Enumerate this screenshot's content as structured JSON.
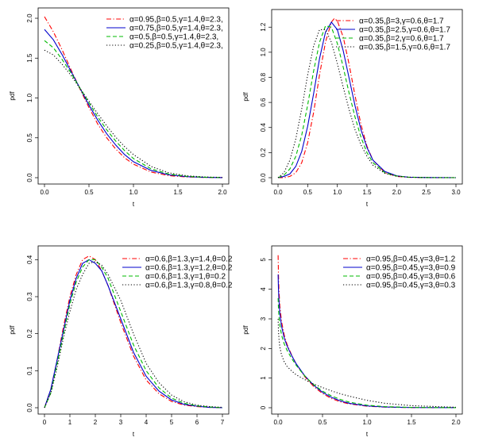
{
  "chart_data": [
    {
      "type": "line",
      "xlabel": "t",
      "ylabel": "pdf",
      "xlim": [
        0,
        2
      ],
      "ylim": [
        0,
        2.05
      ],
      "xticks": [
        "0.0",
        "0.5",
        "1.0",
        "1.5",
        "2.0"
      ],
      "yticks": [
        "0.0",
        "0.5",
        "1.0",
        "1.5",
        "2.0"
      ],
      "xtick_values": [
        0,
        0.5,
        1,
        1.5,
        2
      ],
      "ytick_values": [
        0,
        0.5,
        1,
        1.5,
        2
      ],
      "legend": "top-right",
      "grid": false,
      "series": [
        {
          "name": "α=0.95,β=0.5,γ=1.4,θ=2.3,",
          "color": "#ff0000",
          "dash": "dash-dot",
          "x": [
            0,
            0.1,
            0.2,
            0.3,
            0.4,
            0.5,
            0.6,
            0.7,
            0.8,
            0.9,
            1.0,
            1.2,
            1.4,
            1.6,
            1.8,
            2.0
          ],
          "y": [
            2.02,
            1.83,
            1.6,
            1.35,
            1.11,
            0.88,
            0.67,
            0.5,
            0.36,
            0.25,
            0.17,
            0.07,
            0.025,
            0.009,
            0.003,
            0.001
          ]
        },
        {
          "name": "α=0.75,β=0.5,γ=1.4,θ=2.3,",
          "color": "#0000cc",
          "dash": "solid",
          "x": [
            0,
            0.1,
            0.2,
            0.3,
            0.4,
            0.5,
            0.6,
            0.7,
            0.8,
            0.9,
            1.0,
            1.2,
            1.4,
            1.6,
            1.8,
            2.0
          ],
          "y": [
            1.86,
            1.73,
            1.54,
            1.33,
            1.12,
            0.91,
            0.72,
            0.55,
            0.41,
            0.29,
            0.2,
            0.09,
            0.035,
            0.013,
            0.004,
            0.001
          ]
        },
        {
          "name": "α=0.5,β=0.5,γ=1.4,θ=2.3,",
          "color": "#00bb00",
          "dash": "dash",
          "x": [
            0,
            0.1,
            0.2,
            0.3,
            0.4,
            0.5,
            0.6,
            0.7,
            0.8,
            0.9,
            1.0,
            1.2,
            1.4,
            1.6,
            1.8,
            2.0
          ],
          "y": [
            1.72,
            1.63,
            1.48,
            1.31,
            1.12,
            0.94,
            0.76,
            0.6,
            0.46,
            0.34,
            0.24,
            0.11,
            0.045,
            0.017,
            0.006,
            0.002
          ]
        },
        {
          "name": "α=0.25,β=0.5,γ=1.4,θ=2.3,",
          "color": "#000000",
          "dash": "dot",
          "x": [
            0,
            0.1,
            0.2,
            0.3,
            0.4,
            0.5,
            0.6,
            0.7,
            0.8,
            0.9,
            1.0,
            1.2,
            1.4,
            1.6,
            1.8,
            2.0
          ],
          "y": [
            1.6,
            1.54,
            1.42,
            1.28,
            1.12,
            0.96,
            0.8,
            0.65,
            0.51,
            0.39,
            0.29,
            0.14,
            0.06,
            0.024,
            0.009,
            0.003
          ]
        }
      ]
    },
    {
      "type": "line",
      "xlabel": "t",
      "ylabel": "pdf",
      "xlim": [
        0,
        3
      ],
      "ylim": [
        0,
        1.29
      ],
      "xticks": [
        "0.0",
        "0.5",
        "1.0",
        "1.5",
        "2.0",
        "2.5",
        "3.0"
      ],
      "yticks": [
        "0.0",
        "0.2",
        "0.4",
        "0.6",
        "0.8",
        "1.0",
        "1.2"
      ],
      "xtick_values": [
        0,
        0.5,
        1,
        1.5,
        2,
        2.5,
        3
      ],
      "ytick_values": [
        0,
        0.2,
        0.4,
        0.6,
        0.8,
        1.0,
        1.2
      ],
      "legend": "top-right",
      "grid": false,
      "series": [
        {
          "name": "α=0.35,β=3,γ=0.6,θ=1.7",
          "color": "#ff0000",
          "dash": "dash-dot",
          "x": [
            0,
            0.1,
            0.2,
            0.3,
            0.4,
            0.5,
            0.6,
            0.7,
            0.8,
            0.9,
            0.95,
            1.0,
            1.1,
            1.2,
            1.3,
            1.4,
            1.5,
            1.6,
            1.8,
            2.0,
            2.2,
            2.5,
            3.0
          ],
          "y": [
            0,
            0,
            0.01,
            0.04,
            0.12,
            0.28,
            0.52,
            0.82,
            1.08,
            1.24,
            1.27,
            1.25,
            1.12,
            0.9,
            0.65,
            0.42,
            0.25,
            0.14,
            0.04,
            0.01,
            0.003,
            0,
            0
          ]
        },
        {
          "name": "α=0.35,β=2.5,γ=0.6,θ=1.7",
          "color": "#0000cc",
          "dash": "solid",
          "x": [
            0,
            0.1,
            0.2,
            0.3,
            0.4,
            0.5,
            0.6,
            0.7,
            0.8,
            0.9,
            1.0,
            1.1,
            1.2,
            1.3,
            1.4,
            1.5,
            1.6,
            1.8,
            2.0,
            2.2,
            2.5,
            3.0
          ],
          "y": [
            0,
            0.01,
            0.03,
            0.09,
            0.21,
            0.41,
            0.67,
            0.95,
            1.16,
            1.24,
            1.18,
            1.01,
            0.79,
            0.57,
            0.38,
            0.24,
            0.14,
            0.05,
            0.015,
            0.004,
            0.001,
            0
          ]
        },
        {
          "name": "α=0.35,β=2,γ=0.6,θ=1.7",
          "color": "#00bb00",
          "dash": "dash",
          "x": [
            0,
            0.1,
            0.2,
            0.3,
            0.4,
            0.5,
            0.6,
            0.7,
            0.8,
            0.9,
            1.0,
            1.1,
            1.2,
            1.3,
            1.4,
            1.5,
            1.6,
            1.8,
            2.0,
            2.2,
            2.5,
            3.0
          ],
          "y": [
            0,
            0.02,
            0.07,
            0.17,
            0.34,
            0.58,
            0.85,
            1.08,
            1.21,
            1.2,
            1.07,
            0.88,
            0.67,
            0.48,
            0.32,
            0.2,
            0.12,
            0.04,
            0.013,
            0.004,
            0.001,
            0
          ]
        },
        {
          "name": "α=0.35,β=1.5,γ=0.6,θ=1.7",
          "color": "#000000",
          "dash": "dot",
          "x": [
            0,
            0.1,
            0.2,
            0.3,
            0.4,
            0.5,
            0.6,
            0.7,
            0.8,
            0.9,
            1.0,
            1.1,
            1.2,
            1.3,
            1.4,
            1.5,
            1.6,
            1.8,
            2.0,
            2.2,
            2.5,
            3.0
          ],
          "y": [
            0,
            0.04,
            0.14,
            0.31,
            0.55,
            0.82,
            1.05,
            1.18,
            1.18,
            1.08,
            0.91,
            0.72,
            0.54,
            0.38,
            0.26,
            0.17,
            0.1,
            0.035,
            0.012,
            0.004,
            0.001,
            0
          ]
        }
      ]
    },
    {
      "type": "line",
      "xlabel": "t",
      "ylabel": "pdf",
      "xlim": [
        0,
        7
      ],
      "ylim": [
        0,
        0.42
      ],
      "xticks": [
        "0",
        "1",
        "2",
        "3",
        "4",
        "5",
        "6",
        "7"
      ],
      "yticks": [
        "0.0",
        "0.1",
        "0.2",
        "0.3",
        "0.4"
      ],
      "xtick_values": [
        0,
        1,
        2,
        3,
        4,
        5,
        6,
        7
      ],
      "ytick_values": [
        0,
        0.1,
        0.2,
        0.3,
        0.4
      ],
      "legend": "top-right",
      "grid": false,
      "series": [
        {
          "name": "α=0.6,β=1.3,γ=1.4,θ=0.2",
          "color": "#ff0000",
          "dash": "dash-dot",
          "x": [
            0,
            0.25,
            0.5,
            0.75,
            1.0,
            1.25,
            1.5,
            1.75,
            2.0,
            2.25,
            2.5,
            3.0,
            3.5,
            4.0,
            4.5,
            5.0,
            5.5,
            6.0,
            6.5,
            7.0
          ],
          "y": [
            0,
            0.05,
            0.13,
            0.22,
            0.3,
            0.36,
            0.4,
            0.41,
            0.4,
            0.37,
            0.33,
            0.23,
            0.14,
            0.075,
            0.038,
            0.017,
            0.007,
            0.003,
            0.001,
            0
          ]
        },
        {
          "name": "α=0.6,β=1.3,γ=1.2,θ=0.2",
          "color": "#0000cc",
          "dash": "solid",
          "x": [
            0,
            0.25,
            0.5,
            0.75,
            1.0,
            1.25,
            1.5,
            1.75,
            2.0,
            2.25,
            2.5,
            3.0,
            3.5,
            4.0,
            4.5,
            5.0,
            5.5,
            6.0,
            6.5,
            7.0
          ],
          "y": [
            0,
            0.05,
            0.13,
            0.21,
            0.29,
            0.35,
            0.39,
            0.4,
            0.39,
            0.37,
            0.33,
            0.24,
            0.15,
            0.085,
            0.045,
            0.021,
            0.009,
            0.004,
            0.001,
            0
          ]
        },
        {
          "name": "α=0.6,β=1.3,γ=1,θ=0.2",
          "color": "#00bb00",
          "dash": "dash",
          "x": [
            0,
            0.25,
            0.5,
            0.75,
            1.0,
            1.25,
            1.5,
            1.75,
            2.0,
            2.25,
            2.5,
            3.0,
            3.5,
            4.0,
            4.5,
            5.0,
            5.5,
            6.0,
            6.5,
            7.0
          ],
          "y": [
            0,
            0.04,
            0.12,
            0.2,
            0.28,
            0.34,
            0.38,
            0.4,
            0.4,
            0.38,
            0.35,
            0.26,
            0.17,
            0.1,
            0.054,
            0.026,
            0.012,
            0.005,
            0.002,
            0
          ]
        },
        {
          "name": "α=0.6,β=1.3,γ=0.8,θ=0.2",
          "color": "#000000",
          "dash": "dot",
          "x": [
            0,
            0.25,
            0.5,
            0.75,
            1.0,
            1.25,
            1.5,
            1.75,
            2.0,
            2.25,
            2.5,
            3.0,
            3.5,
            4.0,
            4.5,
            5.0,
            5.5,
            6.0,
            6.5,
            7.0
          ],
          "y": [
            0,
            0.04,
            0.11,
            0.19,
            0.26,
            0.32,
            0.36,
            0.39,
            0.395,
            0.385,
            0.36,
            0.29,
            0.2,
            0.12,
            0.068,
            0.034,
            0.016,
            0.007,
            0.003,
            0.001
          ]
        }
      ]
    },
    {
      "type": "line",
      "xlabel": "t",
      "ylabel": "pdf",
      "xlim": [
        0,
        2
      ],
      "ylim": [
        0,
        5.25
      ],
      "xticks": [
        "0.0",
        "0.5",
        "1.0",
        "1.5",
        "2.0"
      ],
      "yticks": [
        "0",
        "1",
        "2",
        "3",
        "4",
        "5"
      ],
      "xtick_values": [
        0,
        0.5,
        1,
        1.5,
        2
      ],
      "ytick_values": [
        0,
        1,
        2,
        3,
        4,
        5
      ],
      "legend": "top-right",
      "grid": false,
      "series": [
        {
          "name": "α=0.95,β=0.45,γ=3,θ=1.2",
          "color": "#ff0000",
          "dash": "dash-dot",
          "x": [
            0.001,
            0.005,
            0.01,
            0.02,
            0.04,
            0.07,
            0.1,
            0.15,
            0.2,
            0.3,
            0.4,
            0.5,
            0.6,
            0.7,
            0.8,
            1.0,
            1.2,
            1.5,
            2.0
          ],
          "y": [
            5.15,
            4.5,
            4.0,
            3.45,
            2.9,
            2.45,
            2.15,
            1.8,
            1.5,
            1.05,
            0.72,
            0.48,
            0.31,
            0.2,
            0.13,
            0.05,
            0.02,
            0.005,
            0.001
          ]
        },
        {
          "name": "α=0.95,β=0.45,γ=3,θ=0.9",
          "color": "#0000cc",
          "dash": "solid",
          "x": [
            0.001,
            0.005,
            0.01,
            0.02,
            0.04,
            0.07,
            0.1,
            0.15,
            0.2,
            0.3,
            0.4,
            0.5,
            0.6,
            0.7,
            0.8,
            1.0,
            1.2,
            1.5,
            2.0
          ],
          "y": [
            4.5,
            4.0,
            3.65,
            3.2,
            2.75,
            2.35,
            2.1,
            1.78,
            1.5,
            1.08,
            0.76,
            0.52,
            0.35,
            0.23,
            0.15,
            0.06,
            0.025,
            0.007,
            0.001
          ]
        },
        {
          "name": "α=0.95,β=0.45,γ=3,θ=0.6",
          "color": "#00bb00",
          "dash": "dash",
          "x": [
            0.001,
            0.005,
            0.01,
            0.02,
            0.04,
            0.07,
            0.1,
            0.15,
            0.2,
            0.3,
            0.4,
            0.5,
            0.6,
            0.7,
            0.8,
            1.0,
            1.2,
            1.5,
            2.0
          ],
          "y": [
            3.7,
            3.35,
            3.1,
            2.8,
            2.45,
            2.15,
            1.95,
            1.68,
            1.45,
            1.07,
            0.78,
            0.56,
            0.4,
            0.28,
            0.19,
            0.085,
            0.037,
            0.011,
            0.002
          ]
        },
        {
          "name": "α=0.95,β=0.45,γ=3,θ=0.3",
          "color": "#000000",
          "dash": "dot",
          "x": [
            0.001,
            0.005,
            0.01,
            0.02,
            0.04,
            0.07,
            0.1,
            0.15,
            0.2,
            0.3,
            0.4,
            0.5,
            0.6,
            0.7,
            0.8,
            1.0,
            1.2,
            1.5,
            2.0
          ],
          "y": [
            3.0,
            2.6,
            2.35,
            2.05,
            1.78,
            1.55,
            1.4,
            1.25,
            1.12,
            0.95,
            0.8,
            0.68,
            0.57,
            0.47,
            0.39,
            0.25,
            0.15,
            0.07,
            0.015
          ]
        }
      ]
    }
  ]
}
